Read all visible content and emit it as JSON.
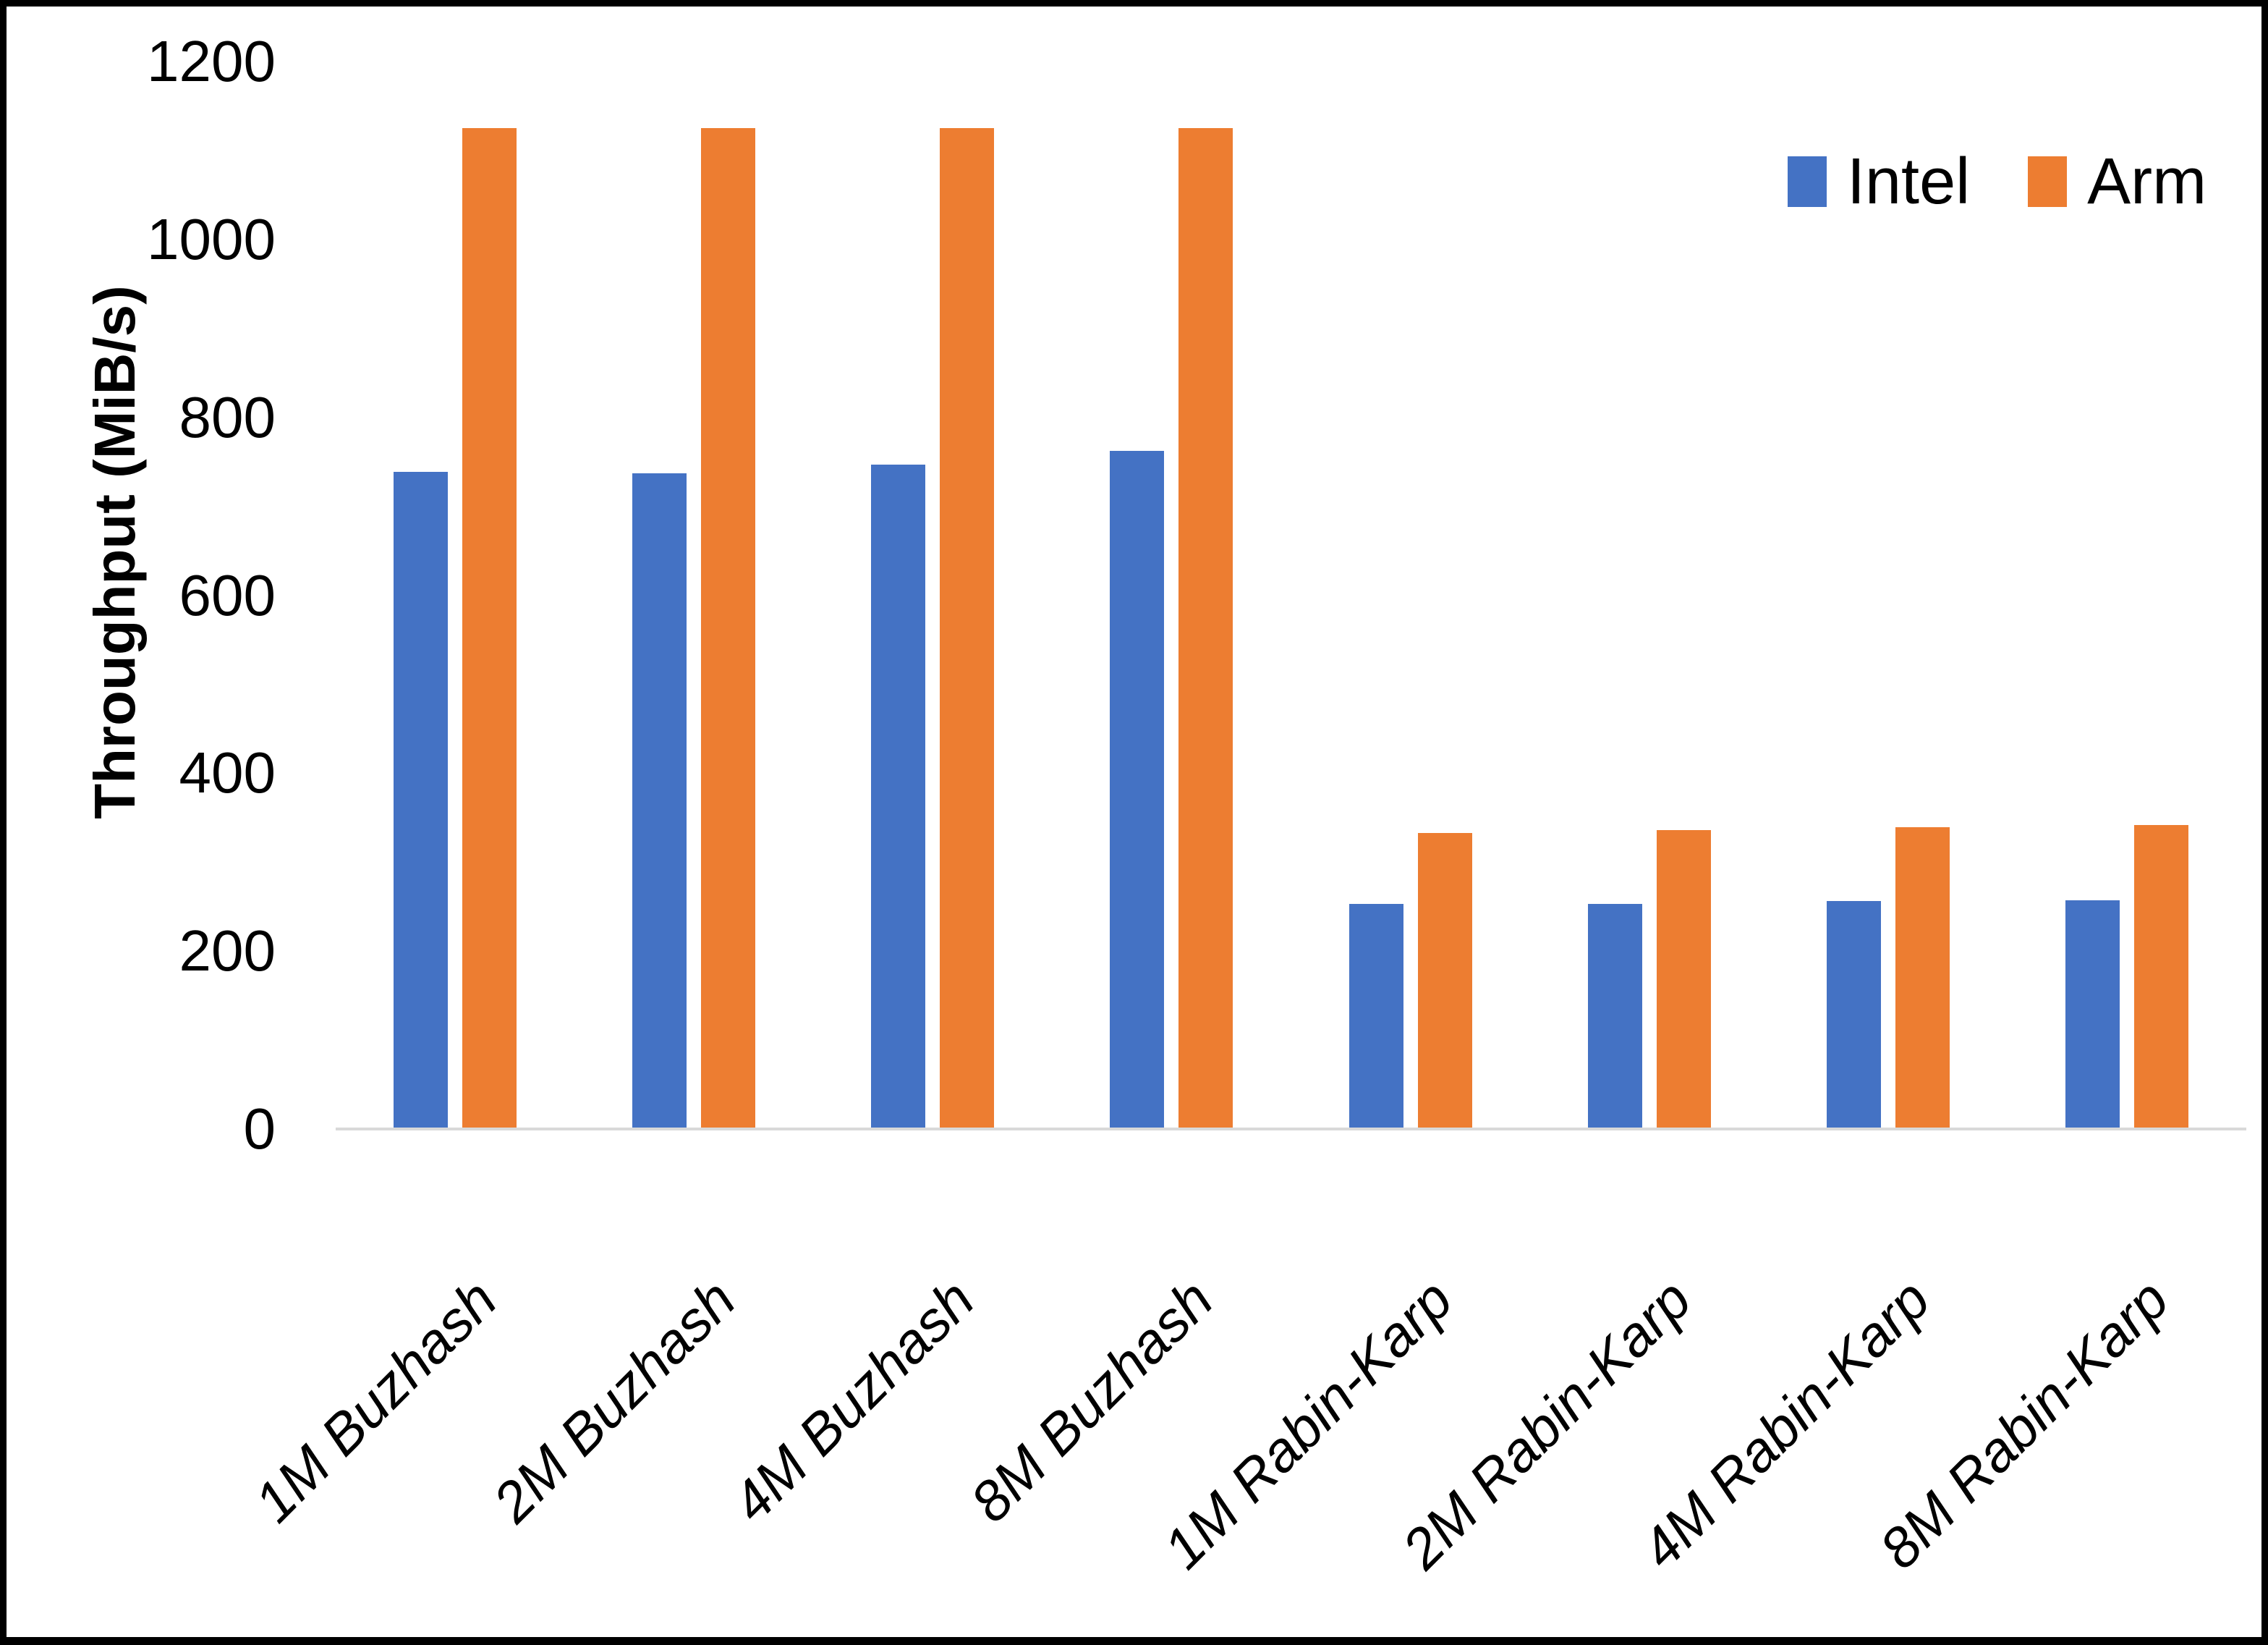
{
  "chart_data": {
    "type": "bar",
    "title": "",
    "xlabel": "",
    "ylabel": "Throughput (MiB/s)",
    "categories": [
      "1M Buzhash",
      "2M Buzhash",
      "4M Buzhash",
      "8M Buzhash",
      "1M Rabin-Karp",
      "2M Rabin-Karp",
      "4M Rabin-Karp",
      "8M Rabin-Karp"
    ],
    "series": [
      {
        "name": "Intel",
        "color": "#4472C4",
        "values": [
          739,
          737,
          747,
          762,
          253,
          253,
          256,
          257
        ]
      },
      {
        "name": "Arm",
        "color": "#ED7D31",
        "values": [
          1125,
          1125,
          1125,
          1125,
          333,
          336,
          339,
          342
        ]
      }
    ],
    "ylim": [
      0,
      1200
    ],
    "yticks": [
      0,
      200,
      400,
      600,
      800,
      1000,
      1200
    ],
    "grid": false,
    "legend_position": "top-right"
  },
  "style": {
    "axis_line_color": "#D9D9D9",
    "frame_color": "#000000",
    "background_color": "#ffffff",
    "text_color": "#000000"
  }
}
